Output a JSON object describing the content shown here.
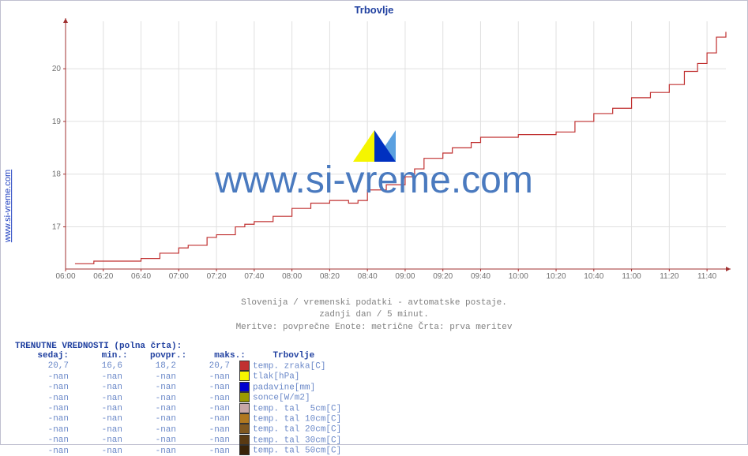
{
  "title": "Trbovlje",
  "watermark": "www.si-vreme.com",
  "yaxis_link": "www.si-vreme.com",
  "subtitle_lines": [
    "Slovenija / vremenski podatki - avtomatske postaje.",
    "zadnji dan / 5 minut.",
    "Meritve: povprečne  Enote: metrične  Črta: prva meritev"
  ],
  "chart": {
    "type": "line",
    "xlim_minutes": [
      360,
      710
    ],
    "ylim": [
      16.2,
      20.9
    ],
    "x_ticks_minutes": [
      360,
      380,
      400,
      420,
      440,
      460,
      480,
      500,
      520,
      540,
      560,
      580,
      600,
      620,
      640,
      660,
      680,
      700
    ],
    "x_tick_labels": [
      "06:00",
      "06:20",
      "06:40",
      "07:00",
      "07:20",
      "07:40",
      "08:00",
      "08:20",
      "08:40",
      "09:00",
      "09:20",
      "09:40",
      "10:00",
      "10:20",
      "10:40",
      "11:00",
      "11:20",
      "11:40"
    ],
    "y_ticks": [
      17,
      18,
      19,
      20
    ],
    "grid_color": "#e0e0e0",
    "axis_color": "#a03030",
    "line_color": "#c03030",
    "line_width": 1.2,
    "background_color": "#ffffff",
    "series": {
      "x_min": [
        365,
        375,
        385,
        395,
        400,
        410,
        420,
        425,
        435,
        440,
        450,
        455,
        460,
        470,
        480,
        490,
        500,
        510,
        515,
        520,
        530,
        540,
        545,
        550,
        560,
        565,
        575,
        580,
        590,
        600,
        610,
        620,
        630,
        640,
        650,
        660,
        670,
        680,
        688,
        695,
        700,
        705,
        710
      ],
      "y": [
        16.3,
        16.35,
        16.35,
        16.35,
        16.4,
        16.5,
        16.6,
        16.65,
        16.8,
        16.85,
        17.0,
        17.05,
        17.1,
        17.2,
        17.35,
        17.45,
        17.5,
        17.45,
        17.5,
        17.7,
        17.8,
        17.95,
        18.1,
        18.3,
        18.4,
        18.5,
        18.6,
        18.7,
        18.7,
        18.75,
        18.75,
        18.8,
        19.0,
        19.15,
        19.25,
        19.45,
        19.55,
        19.7,
        19.95,
        20.1,
        20.3,
        20.6,
        20.7
      ]
    }
  },
  "legend": {
    "title": "TRENUTNE VREDNOSTI (polna črta):",
    "headers": [
      "sedaj:",
      "min.:",
      "povpr.:",
      "maks.:",
      "Trbovlje"
    ],
    "rows": [
      {
        "sedaj": "20,7",
        "min": "16,6",
        "povpr": "18,2",
        "maks": "20,7",
        "swatch": "#c03030",
        "metric": "temp. zraka[C]"
      },
      {
        "sedaj": "-nan",
        "min": "-nan",
        "povpr": "-nan",
        "maks": "-nan",
        "swatch": "#f5f500",
        "metric": "tlak[hPa]"
      },
      {
        "sedaj": "-nan",
        "min": "-nan",
        "povpr": "-nan",
        "maks": "-nan",
        "swatch": "#0000d0",
        "metric": "padavine[mm]"
      },
      {
        "sedaj": "-nan",
        "min": "-nan",
        "povpr": "-nan",
        "maks": "-nan",
        "swatch": "#999900",
        "metric": "sonce[W/m2]"
      },
      {
        "sedaj": "-nan",
        "min": "-nan",
        "povpr": "-nan",
        "maks": "-nan",
        "swatch": "#c8a8a8",
        "metric": "temp. tal  5cm[C]"
      },
      {
        "sedaj": "-nan",
        "min": "-nan",
        "povpr": "-nan",
        "maks": "-nan",
        "swatch": "#b07820",
        "metric": "temp. tal 10cm[C]"
      },
      {
        "sedaj": "-nan",
        "min": "-nan",
        "povpr": "-nan",
        "maks": "-nan",
        "swatch": "#805820",
        "metric": "temp. tal 20cm[C]"
      },
      {
        "sedaj": "-nan",
        "min": "-nan",
        "povpr": "-nan",
        "maks": "-nan",
        "swatch": "#5a3a12",
        "metric": "temp. tal 30cm[C]"
      },
      {
        "sedaj": "-nan",
        "min": "-nan",
        "povpr": "-nan",
        "maks": "-nan",
        "swatch": "#3a2408",
        "metric": "temp. tal 50cm[C]"
      }
    ]
  },
  "watermark_logo": {
    "tri1_color": "#f5f500",
    "tri2_color": "#5aa0e0",
    "tri3_color": "#0030c0"
  }
}
